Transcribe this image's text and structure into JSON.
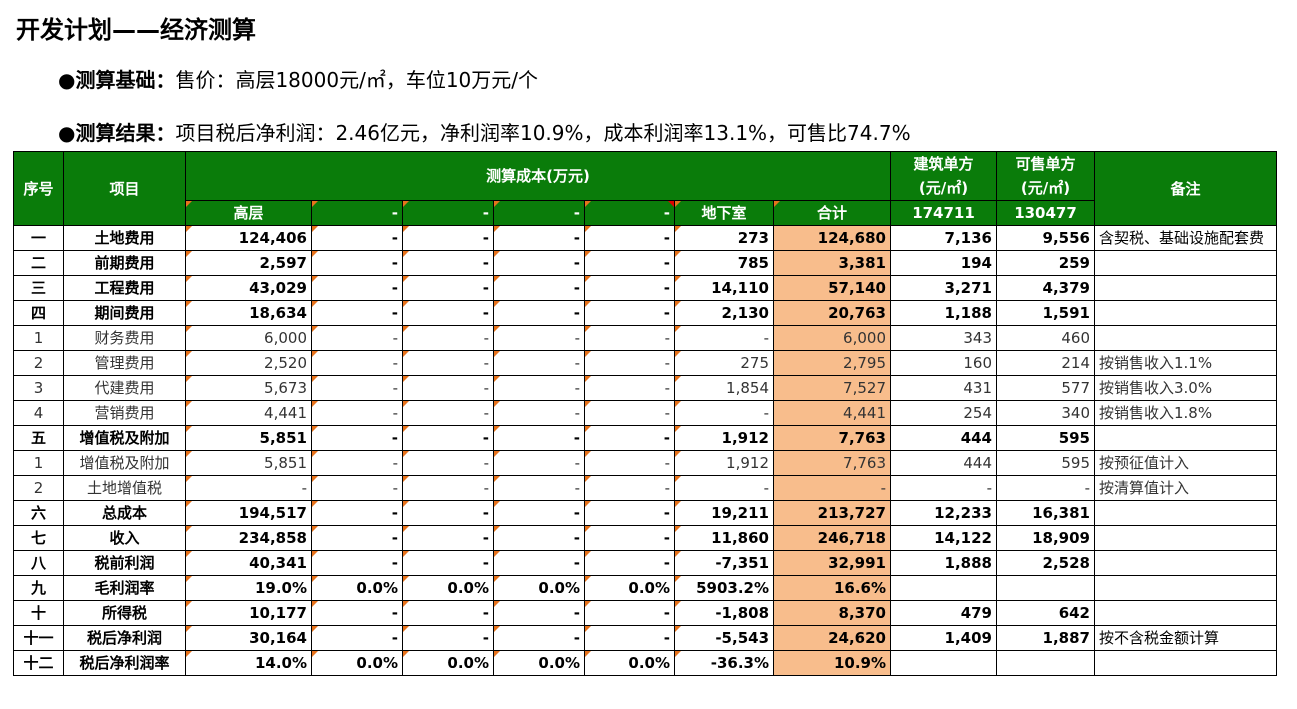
{
  "title": "开发计划——经济测算",
  "basis": {
    "label": "●测算基础：",
    "text": "售价：高层18000元/㎡，车位10万元/个"
  },
  "result": {
    "label": "●测算结果：",
    "text": "项目税后净利润：2.46亿元，净利润率10.9%，成本利润率13.1%，可售比74.7%"
  },
  "table": {
    "header": {
      "seq": "序号",
      "item": "项目",
      "cost_group": "测算成本(万元)",
      "build_unit": "建筑单方\n(元/㎡)",
      "sale_unit": "可售单方\n(元/㎡)",
      "remark": "备注",
      "sub": [
        "高层",
        "-",
        "-",
        "-",
        "-",
        "地下室",
        "合计"
      ],
      "build_area": "174711",
      "sale_area": "130477"
    },
    "rows": [
      {
        "seq": "一",
        "item": "土地费用",
        "bold": true,
        "vals": [
          "124,406",
          "-",
          "-",
          "-",
          "-",
          "273",
          "124,680",
          "7,136",
          "9,556"
        ],
        "remark": "含契税、基础设施配套费"
      },
      {
        "seq": "二",
        "item": "前期费用",
        "bold": true,
        "vals": [
          "2,597",
          "-",
          "-",
          "-",
          "-",
          "785",
          "3,381",
          "194",
          "259"
        ],
        "remark": ""
      },
      {
        "seq": "三",
        "item": "工程费用",
        "bold": true,
        "vals": [
          "43,029",
          "-",
          "-",
          "-",
          "-",
          "14,110",
          "57,140",
          "3,271",
          "4,379"
        ],
        "remark": ""
      },
      {
        "seq": "四",
        "item": "期间费用",
        "bold": true,
        "vals": [
          "18,634",
          "-",
          "-",
          "-",
          "-",
          "2,130",
          "20,763",
          "1,188",
          "1,591"
        ],
        "remark": ""
      },
      {
        "seq": "1",
        "item": "财务费用",
        "bold": false,
        "vals": [
          "6,000",
          "-",
          "-",
          "-",
          "-",
          "-",
          "6,000",
          "343",
          "460"
        ],
        "remark": ""
      },
      {
        "seq": "2",
        "item": "管理费用",
        "bold": false,
        "vals": [
          "2,520",
          "-",
          "-",
          "-",
          "-",
          "275",
          "2,795",
          "160",
          "214"
        ],
        "remark": "按销售收入1.1%"
      },
      {
        "seq": "3",
        "item": "代建费用",
        "bold": false,
        "vals": [
          "5,673",
          "-",
          "-",
          "-",
          "-",
          "1,854",
          "7,527",
          "431",
          "577"
        ],
        "remark": "按销售收入3.0%"
      },
      {
        "seq": "4",
        "item": "营销费用",
        "bold": false,
        "vals": [
          "4,441",
          "-",
          "-",
          "-",
          "-",
          "-",
          "4,441",
          "254",
          "340"
        ],
        "remark": "按销售收入1.8%"
      },
      {
        "seq": "五",
        "item": "增值税及附加",
        "bold": true,
        "vals": [
          "5,851",
          "-",
          "-",
          "-",
          "-",
          "1,912",
          "7,763",
          "444",
          "595"
        ],
        "remark": ""
      },
      {
        "seq": "1",
        "item": "增值税及附加",
        "bold": false,
        "vals": [
          "5,851",
          "-",
          "-",
          "-",
          "-",
          "1,912",
          "7,763",
          "444",
          "595"
        ],
        "remark": "按预征值计入"
      },
      {
        "seq": "2",
        "item": "土地增值税",
        "bold": false,
        "vals": [
          "-",
          "-",
          "-",
          "-",
          "-",
          "-",
          "-",
          "-",
          "-"
        ],
        "remark": "按清算值计入"
      },
      {
        "seq": "六",
        "item": "总成本",
        "bold": true,
        "vals": [
          "194,517",
          "-",
          "-",
          "-",
          "-",
          "19,211",
          "213,727",
          "12,233",
          "16,381"
        ],
        "remark": ""
      },
      {
        "seq": "七",
        "item": "收入",
        "bold": true,
        "vals": [
          "234,858",
          "-",
          "-",
          "-",
          "-",
          "11,860",
          "246,718",
          "14,122",
          "18,909"
        ],
        "remark": ""
      },
      {
        "seq": "八",
        "item": "税前利润",
        "bold": true,
        "vals": [
          "40,341",
          "-",
          "-",
          "-",
          "-",
          "-7,351",
          "32,991",
          "1,888",
          "2,528"
        ],
        "remark": ""
      },
      {
        "seq": "九",
        "item": "毛利润率",
        "bold": true,
        "vals": [
          "19.0%",
          "0.0%",
          "0.0%",
          "0.0%",
          "0.0%",
          "5903.2%",
          "16.6%",
          "",
          ""
        ],
        "remark": ""
      },
      {
        "seq": "十",
        "item": "所得税",
        "bold": true,
        "vals": [
          "10,177",
          "-",
          "-",
          "-",
          "-",
          "-1,808",
          "8,370",
          "479",
          "642"
        ],
        "remark": ""
      },
      {
        "seq": "十一",
        "item": "税后净利润",
        "bold": true,
        "vals": [
          "30,164",
          "-",
          "-",
          "-",
          "-",
          "-5,543",
          "24,620",
          "1,409",
          "1,887"
        ],
        "remark": "按不含税金额计算"
      },
      {
        "seq": "十二",
        "item": "税后净利润率",
        "bold": true,
        "vals": [
          "14.0%",
          "0.0%",
          "0.0%",
          "0.0%",
          "0.0%",
          "-36.3%",
          "10.9%",
          "",
          ""
        ],
        "remark": ""
      }
    ]
  }
}
